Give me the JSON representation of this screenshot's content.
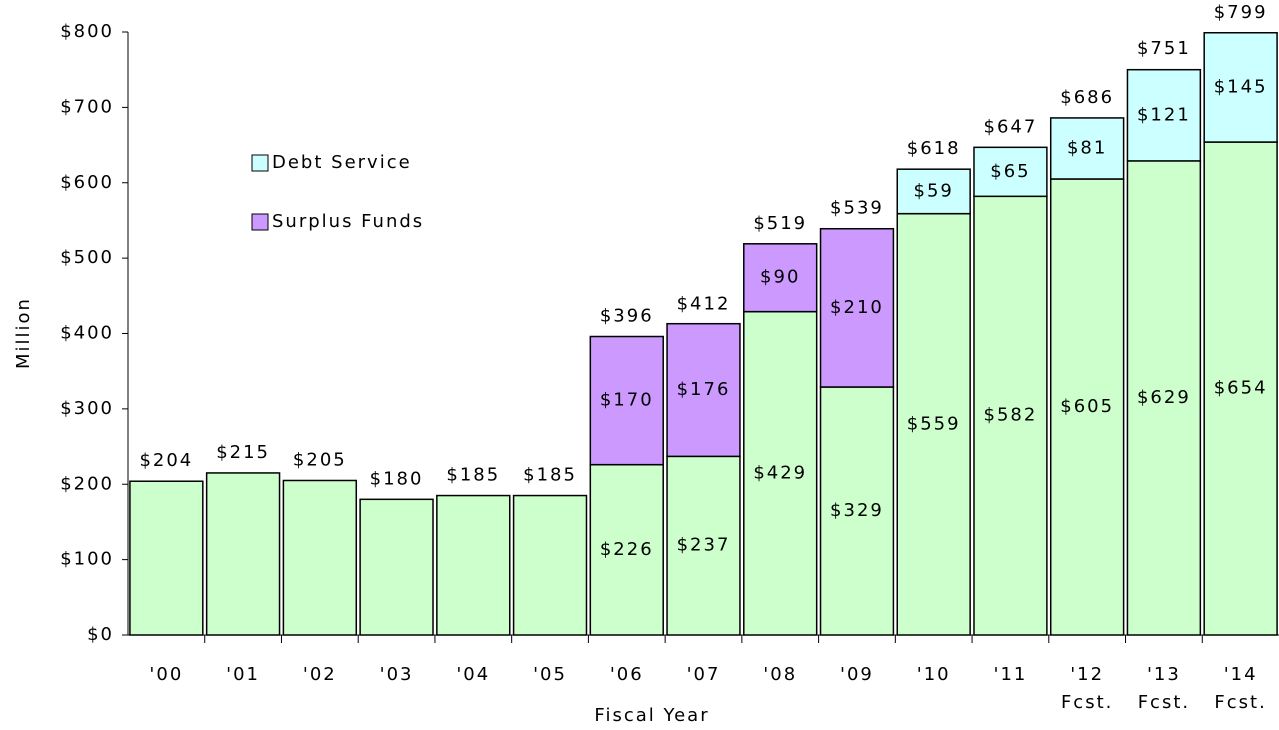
{
  "chart_data": {
    "type": "stacked-bar",
    "y_label": "Million",
    "x_label": "Fiscal Year",
    "categories": [
      "'00",
      "'01",
      "'02",
      "'03",
      "'04",
      "'05",
      "'06",
      "'07",
      "'08",
      "'09",
      "'10",
      "'11",
      "'12\nFcst.",
      "'13\nFcst.",
      "'14\nFcst."
    ],
    "series": [
      {
        "color": "#ccffcc",
        "values": [
          204,
          215,
          205,
          180,
          185,
          185,
          226,
          237,
          429,
          329,
          559,
          582,
          605,
          629,
          654
        ],
        "value_labels": [
          null,
          null,
          null,
          null,
          null,
          null,
          "$226",
          "$237",
          "$429",
          "$329",
          "$559",
          "$582",
          "$605",
          "$629",
          "$654"
        ]
      },
      {
        "name": "Surplus Funds",
        "color": "#cc99ff",
        "values": [
          null,
          null,
          null,
          null,
          null,
          null,
          170,
          176,
          90,
          210,
          null,
          null,
          null,
          null,
          null
        ],
        "value_labels": [
          null,
          null,
          null,
          null,
          null,
          null,
          "$170",
          "$176",
          "$90",
          "$210",
          null,
          null,
          null,
          null,
          null
        ]
      },
      {
        "name": "Debt Service",
        "color": "#ccffff",
        "values": [
          null,
          null,
          null,
          null,
          null,
          null,
          null,
          null,
          null,
          null,
          59,
          65,
          81,
          121,
          145
        ],
        "value_labels": [
          null,
          null,
          null,
          null,
          null,
          null,
          null,
          null,
          null,
          null,
          "$59",
          "$65",
          "$81",
          "$121",
          "$145"
        ]
      }
    ],
    "totals": [
      204,
      215,
      205,
      180,
      185,
      185,
      396,
      412,
      519,
      539,
      618,
      647,
      686,
      751,
      799
    ],
    "total_labels": [
      "$204",
      "$215",
      "$205",
      "$180",
      "$185",
      "$185",
      "$396",
      "$412",
      "$519",
      "$539",
      "$618",
      "$647",
      "$686",
      "$751",
      "$799"
    ],
    "ylim": [
      0,
      800
    ],
    "yticks": [
      {
        "value": 0,
        "label": "$0"
      },
      {
        "value": 100,
        "label": "$100"
      },
      {
        "value": 200,
        "label": "$200"
      },
      {
        "value": 300,
        "label": "$300"
      },
      {
        "value": 400,
        "label": "$400"
      },
      {
        "value": 500,
        "label": "$500"
      },
      {
        "value": 600,
        "label": "$600"
      },
      {
        "value": 700,
        "label": "$700"
      },
      {
        "value": 800,
        "label": "$800"
      }
    ],
    "grid": false,
    "legend": "upper left"
  }
}
